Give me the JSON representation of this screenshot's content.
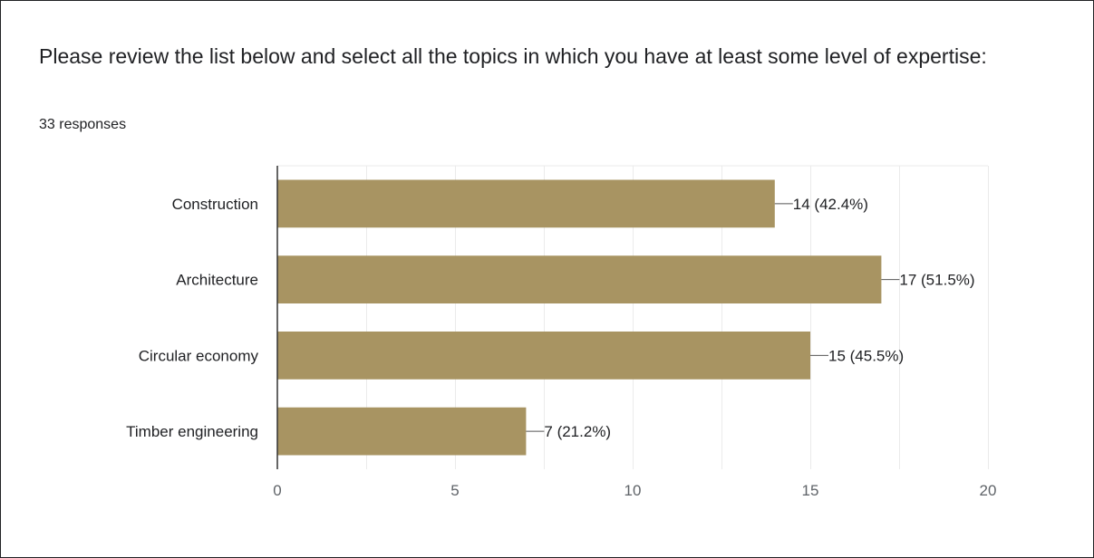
{
  "question": {
    "title": "Please review the list below and select all the topics in which you have at least some level of expertise:",
    "responses": "33 responses"
  },
  "colors": {
    "bar": "#a89462",
    "grid": "#ebebeb",
    "axis": "#333333",
    "text": "#202124",
    "tick_text": "#5f6368"
  },
  "chart_data": {
    "type": "bar",
    "orientation": "horizontal",
    "categories": [
      "Construction",
      "Architecture",
      "Circular economy",
      "Timber engineering"
    ],
    "values": [
      14,
      17,
      15,
      7
    ],
    "data_labels": [
      "14 (42.4%)",
      "17 (51.5%)",
      "15 (45.5%)",
      "7 (21.2%)"
    ],
    "xlim": [
      0,
      20
    ],
    "xticks": [
      0,
      5,
      10,
      15,
      20
    ],
    "xlabel": "",
    "ylabel": "",
    "grid": true,
    "legend": "none"
  }
}
